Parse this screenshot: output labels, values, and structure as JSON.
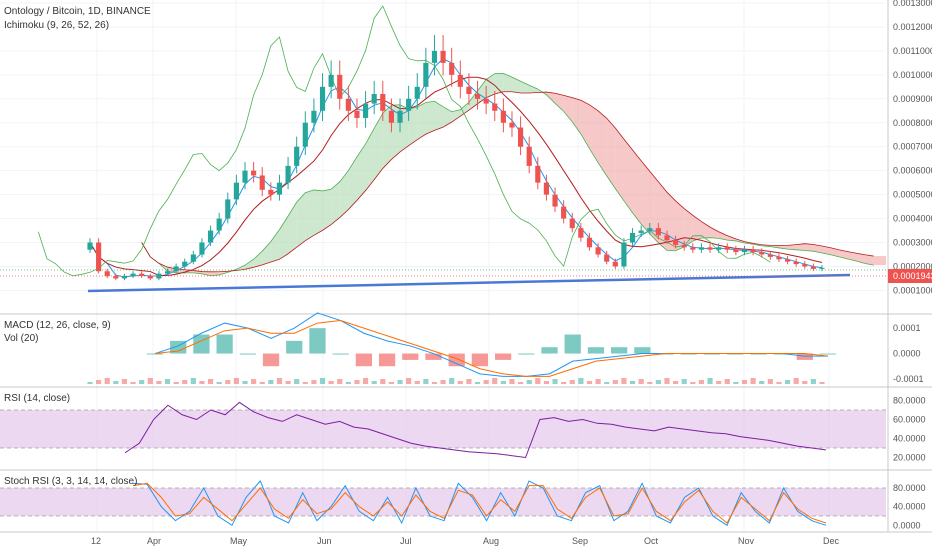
{
  "header": {
    "title": "Ontology / Bitcoin, 1D, BINANCE",
    "indicator": "Ichimoku (9, 26, 52, 26)"
  },
  "panes": {
    "macd_label": "MACD (12, 26, close, 9)",
    "vol_label": "Vol (20)",
    "rsi_label": "RSI (14, close)",
    "stoch_label": "Stoch RSI (3, 3, 14, 14, close)"
  },
  "price_tag": "0.0001943",
  "colors": {
    "up": "#26a69a",
    "down": "#ef5350",
    "tenkan": "#2196f3",
    "kijun": "#b71c1c",
    "lagging": "#4caf50",
    "cloud_bull": "#a5d6a7",
    "cloud_bear": "#ef9a9a",
    "trendline": "#4a78d6",
    "rsi": "#7b1fa2",
    "rsi_band": "#e1bee7",
    "macd": "#2196f3",
    "signal": "#ff6d00"
  },
  "chart_data": [
    {
      "type": "candlestick",
      "title": "Ontology / Bitcoin, 1D, BINANCE",
      "y_ticks": [
        "0.0013000",
        "0.0012000",
        "0.0011000",
        "0.0010000",
        "0.0009000",
        "0.0008000",
        "0.0007000",
        "0.0006000",
        "0.0005000",
        "0.0004000",
        "0.0003000",
        "0.0002000",
        "0.0001000"
      ],
      "ylim": [
        6e-05,
        0.0013
      ],
      "x_ticks": [
        "12",
        "Apr",
        "May",
        "Jun",
        "Jul",
        "Aug",
        "Sep",
        "Oct",
        "Nov",
        "Dec"
      ],
      "last_price": 0.0001943,
      "close_series": [
        0.0003,
        0.00018,
        0.00016,
        0.00015,
        0.00016,
        0.00017,
        0.00016,
        0.00015,
        0.00017,
        0.00018,
        0.0002,
        0.00022,
        0.00025,
        0.0003,
        0.00035,
        0.0004,
        0.00048,
        0.00055,
        0.0006,
        0.00058,
        0.00052,
        0.0005,
        0.00055,
        0.00062,
        0.0007,
        0.0008,
        0.00085,
        0.00095,
        0.001,
        0.0009,
        0.00085,
        0.00082,
        0.00088,
        0.00092,
        0.00085,
        0.0008,
        0.00085,
        0.0009,
        0.00095,
        0.00105,
        0.0011,
        0.00105,
        0.001,
        0.00095,
        0.00092,
        0.0009,
        0.00088,
        0.00085,
        0.0008,
        0.00078,
        0.0007,
        0.00062,
        0.00055,
        0.0005,
        0.00045,
        0.0004,
        0.00036,
        0.00032,
        0.00028,
        0.00025,
        0.00022,
        0.0002,
        0.0003,
        0.00034,
        0.00035,
        0.00036,
        0.00033,
        0.00031,
        0.00029,
        0.00028,
        0.00027,
        0.00028,
        0.00027,
        0.00028,
        0.00027,
        0.00026,
        0.00027,
        0.00026,
        0.00025,
        0.00024,
        0.00023,
        0.00022,
        0.00021,
        0.0002,
        0.00019,
        0.000194
      ]
    },
    {
      "type": "line",
      "title": "MACD (12, 26, close, 9)",
      "y_ticks": [
        "0.0001",
        "0.0000",
        "-0.0001"
      ],
      "ylim": [
        -0.00012,
        0.00014
      ],
      "series": [
        {
          "name": "MACD",
          "values": [
            0.0,
            3e-05,
            8e-05,
            0.00012,
            0.0001,
            6e-05,
            0.0001,
            0.00016,
            0.00013,
            8e-05,
            5e-05,
            3e-05,
            0.0,
            -4e-05,
            -8e-05,
            -9e-05,
            -9e-05,
            -8e-05,
            -3e-05,
            -2e-05,
            -1e-05,
            0.0,
            0.0,
            0.0,
            0.0,
            0.0,
            0.0,
            0.0,
            -1e-05,
            -1e-05
          ]
        },
        {
          "name": "Signal",
          "values": [
            0.0,
            1e-05,
            5e-05,
            9e-05,
            0.0001,
            8e-05,
            8e-05,
            0.00012,
            0.00013,
            0.0001,
            7e-05,
            4e-05,
            1e-05,
            -2e-05,
            -6e-05,
            -8e-05,
            -9e-05,
            -9e-05,
            -6e-05,
            -3e-05,
            -2e-05,
            -1e-05,
            0.0,
            0.0,
            0.0,
            0.0,
            0.0,
            0.0,
            0.0,
            -1e-05
          ]
        }
      ]
    },
    {
      "type": "line",
      "title": "RSI (14, close)",
      "y_ticks": [
        "80.0000",
        "60.0000",
        "40.0000",
        "20.0000"
      ],
      "ylim": [
        10,
        90
      ],
      "bands": [
        70,
        30
      ],
      "values": [
        25,
        35,
        60,
        75,
        65,
        60,
        70,
        65,
        78,
        68,
        62,
        58,
        65,
        60,
        55,
        58,
        52,
        50,
        45,
        40,
        35,
        32,
        30,
        28,
        26,
        25,
        24,
        22,
        20,
        60,
        62,
        58,
        60,
        56,
        55,
        52,
        50,
        48,
        52,
        50,
        48,
        46,
        45,
        42,
        40,
        38,
        35,
        32,
        30,
        28
      ]
    },
    {
      "type": "line",
      "title": "Stoch RSI (3, 3, 14, 14, close)",
      "y_ticks": [
        "80.0000",
        "40.0000",
        "0.0000"
      ],
      "ylim": [
        -10,
        110
      ],
      "bands": [
        80,
        20
      ],
      "series": [
        {
          "name": "K",
          "values": [
            90,
            88,
            40,
            10,
            30,
            80,
            20,
            0,
            60,
            95,
            20,
            5,
            70,
            10,
            40,
            85,
            30,
            10,
            60,
            5,
            80,
            20,
            10,
            90,
            60,
            10,
            70,
            20,
            95,
            80,
            20,
            10,
            70,
            85,
            10,
            30,
            90,
            20,
            5,
            60,
            80,
            20,
            0,
            70,
            30,
            5,
            80,
            30,
            10,
            0
          ]
        },
        {
          "name": "D",
          "values": [
            85,
            90,
            60,
            20,
            25,
            60,
            35,
            10,
            45,
            80,
            35,
            15,
            55,
            25,
            35,
            70,
            40,
            20,
            50,
            20,
            65,
            30,
            15,
            75,
            65,
            20,
            55,
            30,
            85,
            85,
            35,
            15,
            60,
            80,
            20,
            25,
            80,
            30,
            10,
            50,
            75,
            30,
            5,
            60,
            35,
            10,
            70,
            35,
            15,
            5
          ]
        }
      ]
    }
  ]
}
